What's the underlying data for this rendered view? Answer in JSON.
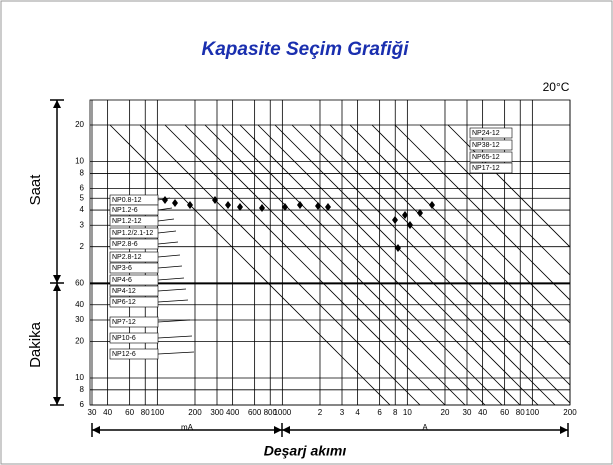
{
  "title": "Kapasite Seçim Grafiği",
  "temperature": "20°C",
  "y_labels": {
    "hours": "Saat",
    "minutes": "Dakika"
  },
  "x_label": "Deşarj akımı",
  "x_units": {
    "ma": "mA",
    "a": "A"
  },
  "y_ticks_hours": [
    "20",
    "10",
    "8",
    "6",
    "5",
    "4",
    "3",
    "2"
  ],
  "y_ticks_minutes": [
    "60",
    "40",
    "30",
    "20",
    "10",
    "8",
    "6"
  ],
  "x_ticks_ma": [
    "30",
    "40",
    "60",
    "80",
    "100",
    "200",
    "300",
    "400",
    "600",
    "800",
    "1000"
  ],
  "x_ticks_a": [
    "2",
    "3",
    "4",
    "6",
    "8",
    "10",
    "20",
    "30",
    "40",
    "60",
    "80",
    "100",
    "200"
  ],
  "models_left": [
    "NP0.8-12",
    "NP1.2-6",
    "NP1.2-12",
    "NP1.2/2.1-12",
    "NP2.8-6",
    "NP2.8-12",
    "NP3-6",
    "NP4-6",
    "NP4-12",
    "NP6-12",
    "NP7-12",
    "NP10-6",
    "NP12-6"
  ],
  "models_right": [
    "NP24-12",
    "NP38-12",
    "NP65-12",
    "NP17-12"
  ]
}
